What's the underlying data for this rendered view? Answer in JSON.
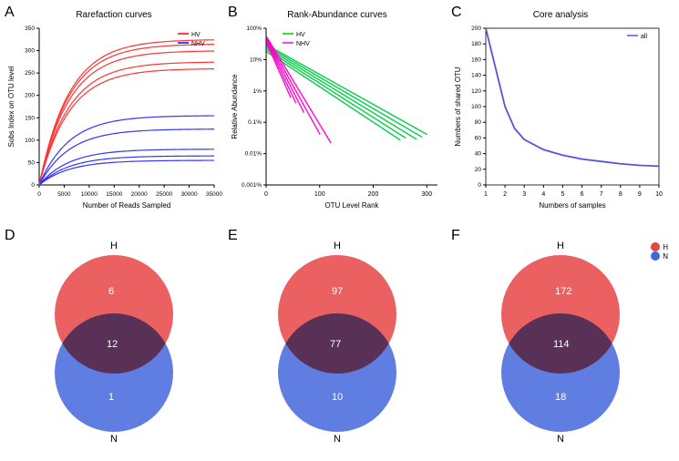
{
  "panelA": {
    "label": "A",
    "title": "Rarefaction curves",
    "xlabel": "Number of Reads Sampled",
    "ylabel": "Sobs Index on OTU level",
    "legend": [
      {
        "label": "HV",
        "color": "#ff0000"
      },
      {
        "label": "NHV",
        "color": "#0000ff"
      }
    ],
    "xlim": [
      0,
      35000
    ],
    "ylim": [
      0,
      350
    ],
    "xticks": [
      0,
      5000,
      10000,
      15000,
      20000,
      25000,
      30000,
      35000
    ],
    "yticks": [
      0,
      50,
      100,
      150,
      200,
      250,
      300,
      350
    ],
    "colors": {
      "HV": "#ff3333",
      "NHV": "#3333ff"
    },
    "hv_finals": [
      325,
      315,
      300,
      275,
      260
    ],
    "nhv_finals": [
      155,
      125,
      80,
      65,
      55
    ]
  },
  "panelB": {
    "label": "B",
    "title": "Rank-Abundance curves",
    "xlabel": "OTU Level Rank",
    "ylabel": "Relative Abundance",
    "legend": [
      {
        "label": "HV",
        "color": "#00cc00"
      },
      {
        "label": "NHV",
        "color": "#ff00ff"
      }
    ],
    "xlim": [
      0,
      320
    ],
    "yticks_labels": [
      "0.001%",
      "0.01%",
      "0.1%",
      "1%",
      "10%",
      "100%"
    ],
    "xticks": [
      0,
      100,
      200,
      300
    ],
    "colors": {
      "HV": "#00cc44",
      "NHV": "#ff00cc"
    }
  },
  "panelC": {
    "label": "C",
    "title": "Core analysis",
    "xlabel": "Numbers of samples",
    "ylabel": "Numbers of shared OTU",
    "legend": [
      {
        "label": "all",
        "color": "#4444ff"
      }
    ],
    "xlim": [
      1,
      10
    ],
    "ylim": [
      0,
      200
    ],
    "xticks": [
      1,
      2,
      3,
      4,
      5,
      6,
      7,
      8,
      9,
      10
    ],
    "yticks": [
      0,
      20,
      40,
      60,
      80,
      100,
      120,
      140,
      160,
      180,
      200
    ],
    "line_color": "#5555dd",
    "data": [
      [
        1,
        200
      ],
      [
        1.5,
        150
      ],
      [
        2,
        100
      ],
      [
        2.5,
        72
      ],
      [
        3,
        58
      ],
      [
        4,
        45
      ],
      [
        5,
        38
      ],
      [
        6,
        33
      ],
      [
        7,
        30
      ],
      [
        8,
        27
      ],
      [
        9,
        25
      ],
      [
        10,
        24
      ]
    ]
  },
  "venn_colors": {
    "H": "#e84545",
    "N": "#4466dd",
    "overlap": "#5a3a7a"
  },
  "panelD": {
    "label": "D",
    "top_label": "H",
    "bottom_label": "N",
    "h_only": 6,
    "overlap": 12,
    "n_only": 1
  },
  "panelE": {
    "label": "E",
    "top_label": "H",
    "bottom_label": "N",
    "h_only": 97,
    "overlap": 77,
    "n_only": 10
  },
  "panelF": {
    "label": "F",
    "top_label": "H",
    "bottom_label": "N",
    "h_only": 172,
    "overlap": 114,
    "n_only": 18
  },
  "venn_legend": [
    {
      "label": "H",
      "color": "#e84545"
    },
    {
      "label": "N",
      "color": "#4466dd"
    }
  ]
}
